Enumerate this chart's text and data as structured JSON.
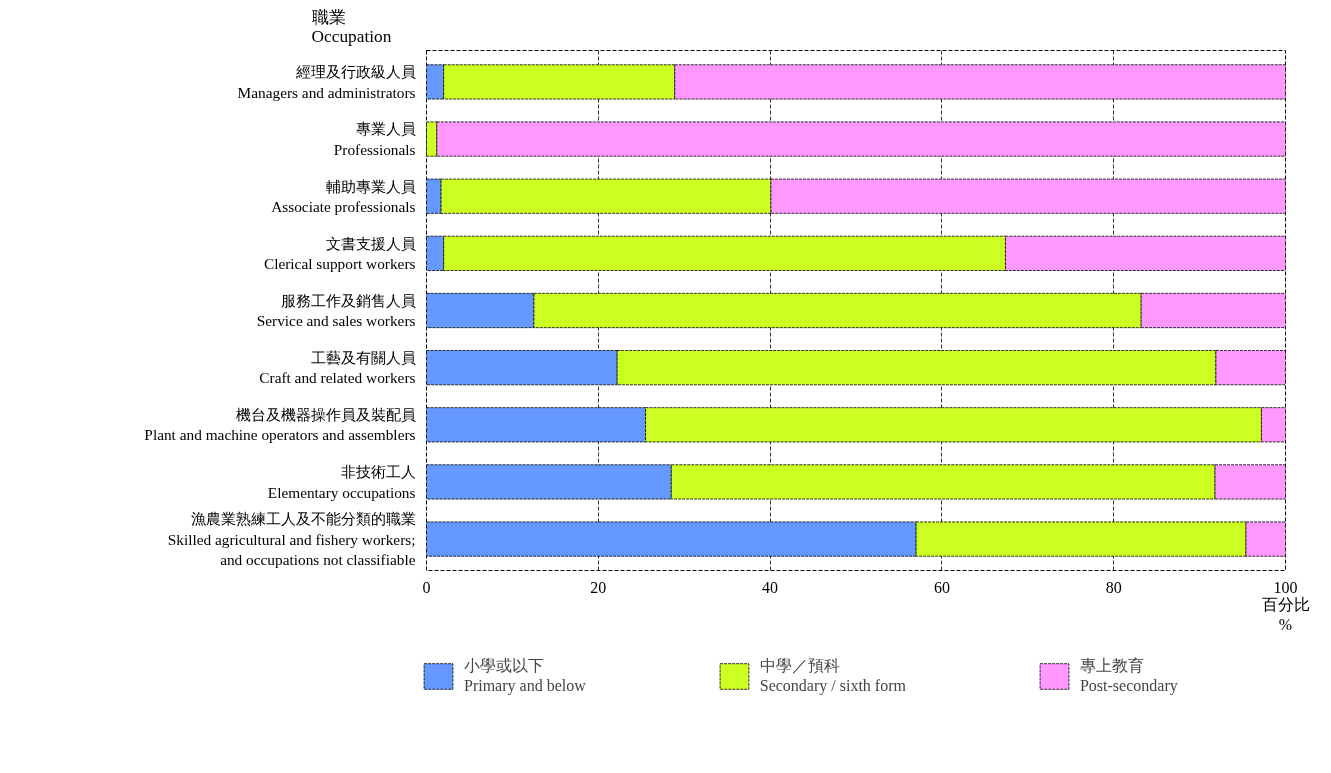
{
  "chart_data": {
    "type": "bar",
    "orientation": "horizontal",
    "stacked": true,
    "ylabel": "職業\nOccupation",
    "xlabel": "百分比\n%",
    "categories": [
      "經理及行政級人員\nManagers and administrators",
      "專業人員\nProfessionals",
      "輔助專業人員\nAssociate professionals",
      "文書支援人員\nClerical support workers",
      "服務工作及銷售人員\nService and sales workers",
      "工藝及有關人員\nCraft and related workers",
      "機台及機器操作員及裝配員\nPlant and machine operators and assemblers",
      "非技術工人\nElementary occupations",
      "漁農業熟練工人及不能分類的職業\nSkilled agricultural and fishery workers;\nand occupations not classifiable"
    ],
    "series": [
      {
        "name": "小學或以下\nPrimary and below",
        "color": "#6699ff",
        "values": [
          2.0,
          0,
          1.7,
          2.0,
          12.5,
          22.2,
          25.5,
          28.5,
          57.0
        ]
      },
      {
        "name": "中學／預科\nSecondary / sixth form",
        "color": "#ccff22",
        "values": [
          26.9,
          1.2,
          38.4,
          65.4,
          70.7,
          69.7,
          71.7,
          63.3,
          38.4
        ]
      },
      {
        "name": "專上教育\nPost-secondary",
        "color": "#ff99ff",
        "values": [
          71.1,
          98.8,
          59.9,
          32.6,
          16.8,
          8.1,
          2.8,
          8.2,
          4.6
        ]
      }
    ],
    "xlim": [
      0,
      100
    ],
    "xticks": [
      0,
      20,
      40,
      60,
      80,
      100
    ],
    "grid": "x",
    "legend": "bottom"
  }
}
